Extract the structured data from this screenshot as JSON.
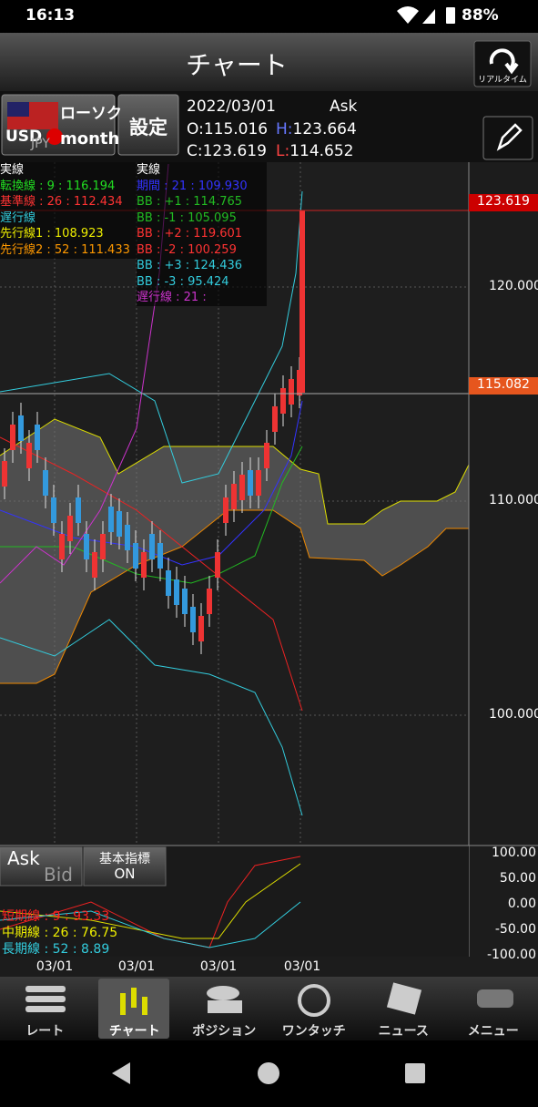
{
  "status_bar": {
    "time": "16:13",
    "battery": "88%"
  },
  "title_bar": {
    "title": "チャート",
    "realtime_button": "リアルタイム"
  },
  "header": {
    "chart_type": "ローソク",
    "currency_base": "USD",
    "currency_quote": "JPY",
    "period": "month",
    "settings_button": "設定",
    "date": "2022/03/01",
    "side": "Ask",
    "open_label": "O:",
    "open": "115.016",
    "high_label": "H:",
    "high": "123.664",
    "close_label": "C:",
    "close": "123.619",
    "low_label": "L:",
    "low": "114.652"
  },
  "ichimoku_legend": {
    "title": "実線",
    "rows": [
      "転換線 : 9 : 116.194",
      "基準線 : 26 : 112.434",
      "遅行線",
      "先行線1 : 108.923",
      "先行線2 : 52 : 111.433"
    ]
  },
  "bb_legend": {
    "title": "実線",
    "rows": [
      "期間 : 21 : 109.930",
      "BB : +1 : 114.765",
      "BB : -1 : 105.095",
      "BB : +2 : 119.601",
      "BB : -2 : 100.259",
      "BB : +3 : 124.436",
      "BB : -3 : 95.424",
      "遅行線 : 21 :"
    ]
  },
  "price_axis": {
    "ticks": [
      "120.000",
      "110.000",
      "100.000"
    ],
    "current_price": "123.619",
    "marker_price": "115.082"
  },
  "oscillator": {
    "axis_ticks": [
      "100.00",
      "50.00",
      "0.00",
      "-50.00",
      "-100.00"
    ],
    "ask_button": "Ask",
    "bid_button": "Bid",
    "indicator_button_title": "基本指標",
    "indicator_button_state": "ON",
    "legend": [
      "短期線 : 9 : 93.33",
      "中期線 : 26 : 76.75",
      "長期線 : 52 : 8.89"
    ]
  },
  "x_axis_labels": [
    "03/01",
    "03/01",
    "03/01",
    "03/01"
  ],
  "tabs": [
    "レート",
    "チャート",
    "ポジション",
    "ワンタッチ",
    "ニュース",
    "メニュー"
  ]
}
